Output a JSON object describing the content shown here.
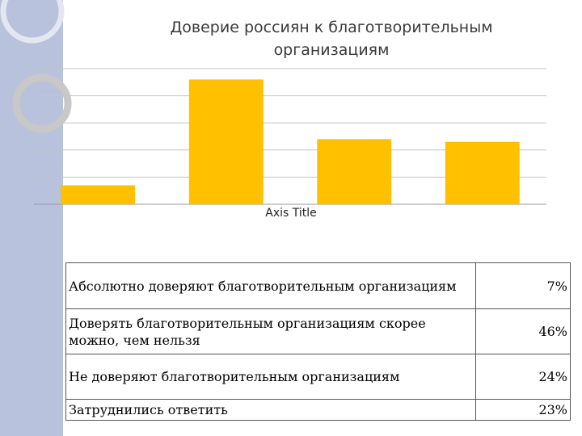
{
  "chart_data": {
    "type": "bar",
    "title": "Доверие россиян к благотворительным\nорганизациям",
    "xlabel": "Axis Title",
    "ylabel": "",
    "categories": [
      "Абсолютно доверяют благотворительным организациям",
      "Доверять благотворительным организациям скорее можно, чем нельзя",
      "Не доверяют благотворительным организациям",
      "Затруднились ответить"
    ],
    "values": [
      7,
      46,
      24,
      23
    ],
    "ylim": [
      0,
      50
    ],
    "grid": true,
    "bar_color": "#ffc000"
  },
  "table": {
    "rows": [
      {
        "label": "Абсолютно доверяют благотворительным организациям",
        "value": "7%"
      },
      {
        "label": "Доверять благотворительным организациям скорее можно, чем нельзя",
        "value": "46%"
      },
      {
        "label": "Не доверяют благотворительным организациям",
        "value": "24%"
      },
      {
        "label": "Затруднились ответить",
        "value": "23%"
      }
    ]
  }
}
